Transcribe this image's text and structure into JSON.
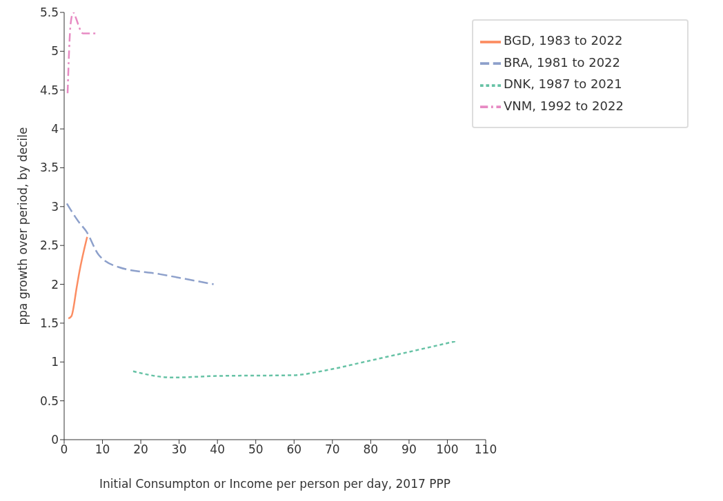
{
  "chart_data": {
    "type": "line",
    "xlabel": "Initial Consumpton or Income per person per day, 2017 PPP",
    "ylabel": "ppa growth over period, by decile",
    "xlim": [
      0,
      110
    ],
    "xticks": [
      0,
      10,
      20,
      30,
      40,
      50,
      60,
      70,
      80,
      90,
      100,
      110
    ],
    "ylim": [
      0,
      5.5
    ],
    "yticks": [
      0,
      0.5,
      1,
      1.5,
      2,
      2.5,
      3,
      3.5,
      4,
      4.5,
      5,
      5.5
    ],
    "grid": false,
    "legend": "top right",
    "marker": "none",
    "series": [
      {
        "name": "BGD, 1983 to 2022",
        "color": "#fc8d62",
        "line_style": "solid",
        "x": [
          1.1,
          1.9,
          3.3,
          3.9,
          6
        ],
        "values": [
          1.56,
          1.59,
          1.97,
          2.14,
          2.61
        ]
      },
      {
        "name": "BRA, 1981 to 2022",
        "color": "#8da0cb",
        "line_style": "dashed",
        "x": [
          0.7,
          3.7,
          5.8,
          9,
          14.3,
          25,
          39
        ],
        "values": [
          3.04,
          2.81,
          2.68,
          2.38,
          2.22,
          2.13,
          2.0
        ]
      },
      {
        "name": "DNK, 1987 to 2021",
        "color": "#66c2a5",
        "line_style": "dotted",
        "x": [
          18,
          28.2,
          40,
          59.9,
          68,
          80,
          90,
          102.4
        ],
        "values": [
          0.88,
          0.8,
          0.82,
          0.83,
          0.89,
          1.02,
          1.13,
          1.27
        ]
      },
      {
        "name": "VNM, 1992 to 2022",
        "color": "#e78ac3",
        "line_style": "dashdot",
        "x": [
          0.9,
          1.7,
          2.4,
          2.8,
          4.9,
          8.7
        ],
        "values": [
          4.46,
          5.36,
          5.5,
          5.46,
          5.23,
          5.23
        ]
      }
    ]
  }
}
